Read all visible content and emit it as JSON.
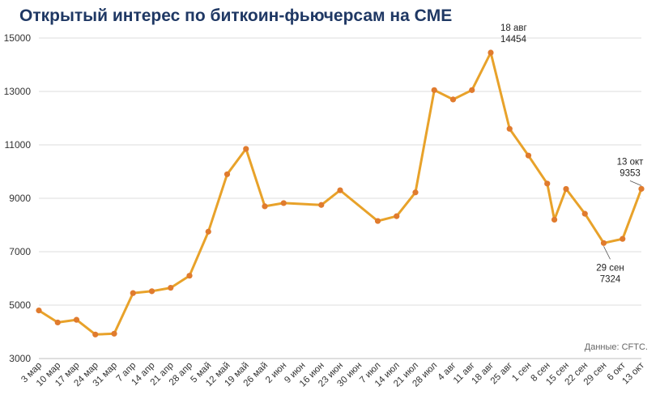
{
  "chart_data": {
    "type": "line",
    "title": "Открытый интерес по биткоин-фьючерсам на CME",
    "xlabel": "",
    "ylabel": "",
    "ylim": [
      3000,
      15000
    ],
    "yticks": [
      "3000",
      "5000",
      "7000",
      "9000",
      "11000",
      "13000",
      "15000"
    ],
    "grid": "horizontal",
    "legend": "none",
    "color": "#e8a22a",
    "x": [
      "3 мар",
      "10 мар",
      "17 мар",
      "24 мар",
      "31 мар",
      "7 апр",
      "14 апр",
      "21 апр",
      "28 апр",
      "5 май",
      "12 май",
      "19 май",
      "26 май",
      "2 июн",
      "9 июн",
      "16 июн",
      "23 июн",
      "30 июн",
      "7 июл",
      "14 июл",
      "21 июл",
      "28 июл",
      "4 авг",
      "11 авг",
      "18 авг",
      "25 авг",
      "1 сен",
      "8 сен",
      "15 сен",
      "22 сен",
      "29 сен",
      "6 окт",
      "13 окт"
    ],
    "series": [
      {
        "points": [
          {
            "x": "3 мар",
            "y": 4800
          },
          {
            "x": "10 мар",
            "y": 4350
          },
          {
            "x": "17 мар",
            "y": 4450
          },
          {
            "x": "24 мар",
            "y": 3900
          },
          {
            "x": "31 мар",
            "y": 3930
          },
          {
            "x": "7 апр",
            "y": 5450
          },
          {
            "x": "14 апр",
            "y": 5520
          },
          {
            "x": "21 апр",
            "y": 5650
          },
          {
            "x": "28 апр",
            "y": 6100
          },
          {
            "x": "5 май",
            "y": 7750
          },
          {
            "x": "12 май",
            "y": 9900
          },
          {
            "x": "19 май",
            "y": 10850
          },
          {
            "x": "26 май",
            "y": 8700
          },
          {
            "x": "2 июн",
            "y": 8820
          },
          {
            "x": "16 июн",
            "y": 8750
          },
          {
            "x": "23 июн",
            "y": 9300
          },
          {
            "x": "7 июл",
            "y": 8150
          },
          {
            "x": "14 июл",
            "y": 8330
          },
          {
            "x": "21 июл",
            "y": 9220
          },
          {
            "x": "28 июл",
            "y": 13050
          },
          {
            "x": "4 авг",
            "y": 12700
          },
          {
            "x": "11 авг",
            "y": 13050
          },
          {
            "x": "18 авг",
            "y": 14454
          },
          {
            "x": "25 авг",
            "y": 11600
          },
          {
            "x": "1 сен",
            "y": 10600
          },
          {
            "x": "8 сен",
            "y": 9550
          },
          {
            "x": "8 сен",
            "y": 8200
          },
          {
            "x": "15 сен",
            "y": 9350
          },
          {
            "x": "22 сен",
            "y": 8420
          },
          {
            "x": "29 сен",
            "y": 7324
          },
          {
            "x": "6 окт",
            "y": 7480
          },
          {
            "x": "13 окт",
            "y": 9353
          }
        ]
      }
    ],
    "annotations": [
      {
        "x": "18 авг",
        "date": "18 авг",
        "value": "14454"
      },
      {
        "x": "29 сен",
        "date": "29 сен",
        "value": "7324"
      },
      {
        "x": "13 окт",
        "date": "13 окт",
        "value": "9353"
      }
    ],
    "source": "Данные: CFTC."
  }
}
